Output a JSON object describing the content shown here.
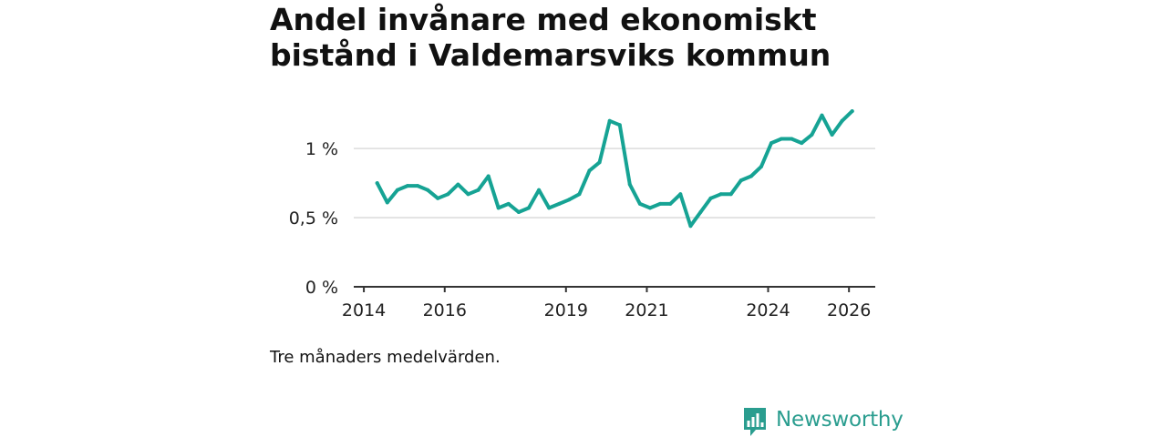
{
  "chart_data": {
    "type": "line",
    "title": "Andel invånare med ekonomiskt bistånd i Valdemarsviks kommun",
    "xlabel": "",
    "ylabel": "",
    "x_ticks": [
      "2014",
      "2016",
      "2019",
      "2021",
      "2024",
      "2026"
    ],
    "x_tick_values": [
      2014,
      2016,
      2019,
      2021,
      2024,
      2026
    ],
    "xlim": [
      2013.75,
      2026.65
    ],
    "y_ticks": [
      "0 %",
      "0,5 %",
      "1 %"
    ],
    "y_tick_values": [
      0,
      0.5,
      1.0
    ],
    "ylim": [
      0,
      1.35
    ],
    "grid": true,
    "line_color": "#16a394",
    "series": [
      {
        "name": "Andel invånare med ekonomiskt bistånd",
        "x": [
          2014.33,
          2014.58,
          2014.83,
          2015.08,
          2015.33,
          2015.58,
          2015.83,
          2016.08,
          2016.33,
          2016.58,
          2016.83,
          2017.08,
          2017.33,
          2017.58,
          2017.83,
          2018.08,
          2018.33,
          2018.58,
          2018.83,
          2019.08,
          2019.33,
          2019.58,
          2019.83,
          2020.08,
          2020.33,
          2020.58,
          2020.83,
          2021.08,
          2021.33,
          2021.58,
          2021.83,
          2022.08,
          2022.33,
          2022.58,
          2022.83,
          2023.08,
          2023.33,
          2023.58,
          2023.83,
          2024.08,
          2024.33,
          2024.58,
          2024.83,
          2025.08,
          2025.33,
          2025.58,
          2025.83,
          2026.08
        ],
        "values": [
          0.75,
          0.61,
          0.7,
          0.73,
          0.73,
          0.7,
          0.64,
          0.67,
          0.74,
          0.67,
          0.7,
          0.8,
          0.57,
          0.6,
          0.54,
          0.57,
          0.7,
          0.57,
          0.6,
          0.63,
          0.67,
          0.84,
          0.9,
          1.2,
          1.17,
          0.74,
          0.6,
          0.57,
          0.6,
          0.6,
          0.67,
          0.44,
          0.54,
          0.64,
          0.67,
          0.67,
          0.77,
          0.8,
          0.87,
          1.04,
          1.07,
          1.07,
          1.04,
          1.1,
          1.24,
          1.1,
          1.2,
          1.27
        ]
      }
    ]
  },
  "footnote": "Tre månaders medelvärden.",
  "brand": {
    "name": "Newsworthy",
    "icon": "newsworthy-logo-icon",
    "color": "#2a9d8f"
  }
}
